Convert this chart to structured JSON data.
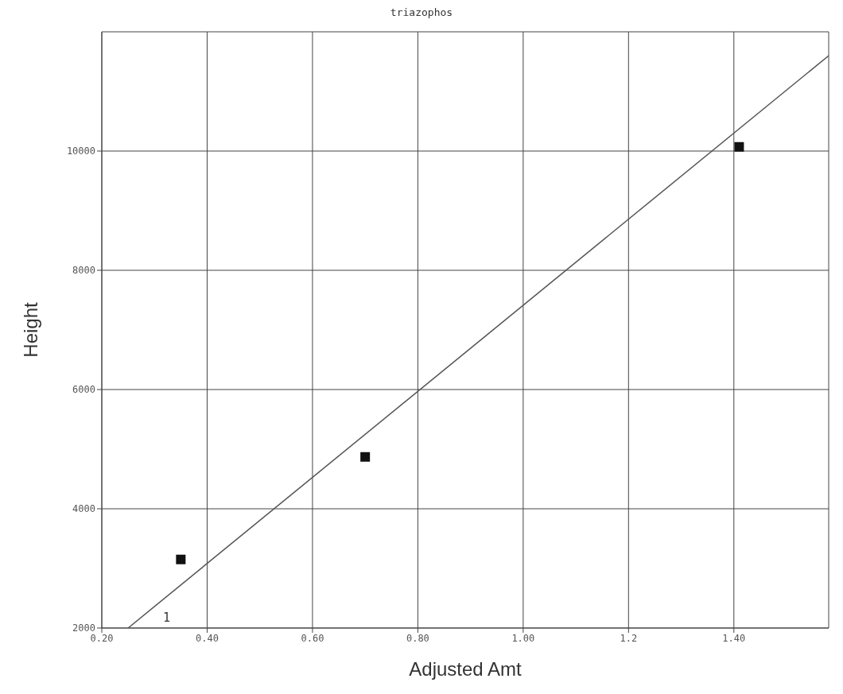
{
  "chart_data": {
    "type": "scatter",
    "title": "triazophos",
    "xlabel": "Adjusted Amt",
    "ylabel": "Height",
    "xlim": [
      0.2,
      1.58
    ],
    "ylim": [
      2000,
      12000
    ],
    "xticks": [
      {
        "value": 0.2,
        "label": "0.20"
      },
      {
        "value": 0.4,
        "label": "0.40"
      },
      {
        "value": 0.6,
        "label": "0.60"
      },
      {
        "value": 0.8,
        "label": "0.80"
      },
      {
        "value": 1.0,
        "label": "1.00"
      },
      {
        "value": 1.2,
        "label": "1.2"
      },
      {
        "value": 1.4,
        "label": "1.40"
      }
    ],
    "yticks": [
      2000,
      4000,
      6000,
      8000,
      10000
    ],
    "grid": true,
    "legend": false,
    "series": [
      {
        "color": "#111111",
        "marker": "square",
        "x": [
          0.35,
          0.7,
          1.41
        ],
        "values": [
          3150,
          4870,
          10070
        ]
      },
      {
        "type": "line",
        "color": "#555555",
        "marker": "none",
        "line_style": "solid",
        "x": [
          0.25,
          1.58
        ],
        "values": [
          2000,
          11600
        ]
      }
    ],
    "annotations": [
      {
        "text": "1",
        "x": 0.25,
        "y": 2000
      }
    ]
  }
}
